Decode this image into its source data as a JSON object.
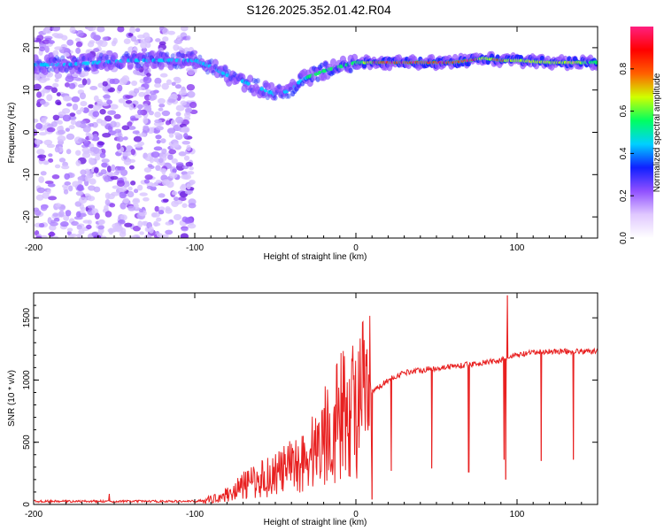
{
  "title": "S126.2025.352.01.42.R04",
  "spectrogram": {
    "type": "heatmap",
    "xlabel": "Height of straight line (km)",
    "ylabel": "Frequency (Hz)",
    "xlim": [
      -200,
      150
    ],
    "ylim": [
      -25,
      25
    ],
    "xticks": [
      -200,
      -100,
      0,
      100
    ],
    "yticks": [
      -20,
      -10,
      0,
      10,
      20
    ],
    "colorbar": {
      "label": "Normalized spectral amplitude",
      "range": [
        0,
        1
      ],
      "ticks": [
        "0.0",
        "0.2",
        "0.4",
        "0.6",
        "0.8"
      ],
      "colormap": [
        "#ffffff",
        "#e0c8ff",
        "#9050ff",
        "#1020ff",
        "#00d0ff",
        "#00ff60",
        "#d0ff00",
        "#ff6000",
        "#ff0000",
        "#ff2080"
      ]
    },
    "ridge": {
      "x": [
        -200,
        -180,
        -160,
        -140,
        -120,
        -100,
        -90,
        -80,
        -70,
        -60,
        -50,
        -40,
        -35,
        -30,
        -20,
        -10,
        0,
        10,
        20,
        40,
        60,
        80,
        90,
        100,
        120,
        150
      ],
      "freq": [
        16,
        16,
        16.5,
        17,
        17,
        17,
        15.5,
        13.5,
        12,
        10.5,
        9,
        10,
        12,
        13,
        14.5,
        15.5,
        16.5,
        16.5,
        16.5,
        16.5,
        16.5,
        17.5,
        17,
        17,
        16.5,
        16.5
      ]
    }
  },
  "snr": {
    "type": "line",
    "xlabel": "Height of straight line (km)",
    "ylabel": "SNR (10 * v/v)",
    "xlim": [
      -200,
      150
    ],
    "ylim": [
      0,
      1700
    ],
    "xticks": [
      -200,
      -100,
      0,
      100
    ],
    "yticks": [
      0,
      500,
      1000,
      1500
    ],
    "color": "#e82020",
    "trend": {
      "x": [
        -200,
        -100,
        -90,
        -80,
        -70,
        -60,
        -50,
        -40,
        -30,
        -25,
        -20,
        -10,
        0,
        10,
        20,
        30,
        40,
        60,
        80,
        90,
        95,
        100,
        110,
        120,
        150
      ],
      "y": [
        25,
        25,
        40,
        80,
        150,
        200,
        250,
        300,
        380,
        450,
        550,
        700,
        800,
        900,
        1000,
        1060,
        1080,
        1110,
        1140,
        1160,
        1180,
        1200,
        1220,
        1230,
        1230
      ]
    },
    "spikes": [
      {
        "x": 10,
        "y": 40
      },
      {
        "x": 22,
        "y": 270
      },
      {
        "x": 47,
        "y": 290
      },
      {
        "x": 70,
        "y": 260
      },
      {
        "x": 92,
        "y": 360
      },
      {
        "x": 93,
        "y": 200
      },
      {
        "x": 94,
        "y": 1680
      },
      {
        "x": 115,
        "y": 350
      },
      {
        "x": 135,
        "y": 360
      },
      {
        "x": -153,
        "y": 85
      }
    ]
  }
}
